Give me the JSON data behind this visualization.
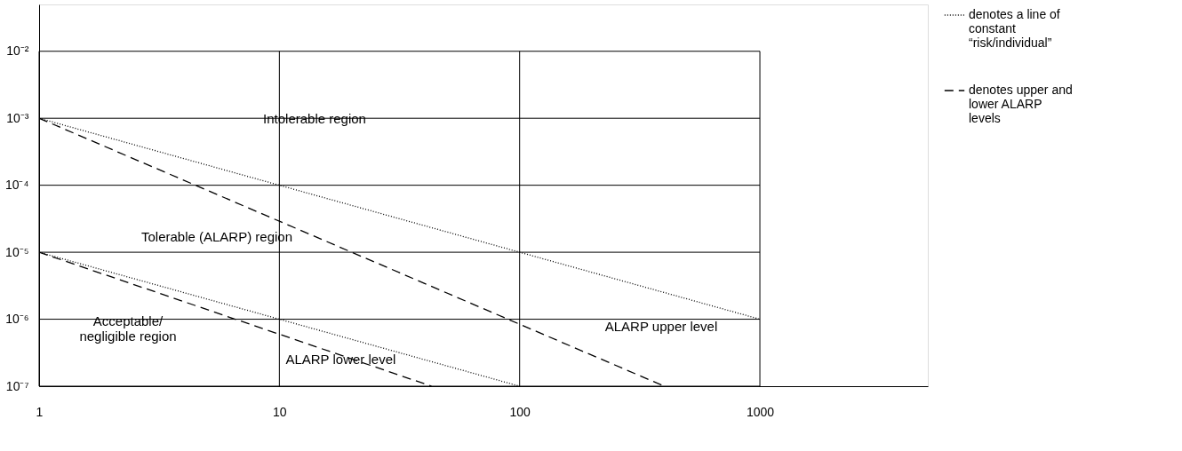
{
  "chart_data": {
    "type": "line",
    "log": "xy",
    "grid": true,
    "legend": "right",
    "xlim": [
      1,
      5000
    ],
    "ylim": [
      1e-07,
      0.05
    ],
    "xticks": [
      1,
      10,
      100,
      1000
    ],
    "yticks": [
      {
        "value": 1e-07,
        "label": "10⁻⁷"
      },
      {
        "value": 1e-06,
        "label": "10⁻⁶"
      },
      {
        "value": 1e-05,
        "label": "10⁻⁵"
      },
      {
        "value": 0.0001,
        "label": "10⁻⁴"
      },
      {
        "value": 0.001,
        "label": "10⁻³"
      },
      {
        "value": 0.01,
        "label": "10⁻²"
      }
    ],
    "series": [
      {
        "name": "denotes a line of constant “risk/individual”",
        "color": "#000000",
        "line_style": "dotted",
        "x": [
          1,
          1000
        ],
        "values": [
          0.001,
          1e-06
        ]
      },
      {
        "name": "denotes upper and lower ALARP levels",
        "color": "#000000",
        "line_style": "dashed",
        "x": [
          1,
          400
        ],
        "values": [
          0.001,
          1e-07
        ]
      },
      {
        "color": "#000000",
        "line_style": "dotted",
        "x": [
          1,
          100
        ],
        "values": [
          1e-05,
          1e-07
        ]
      },
      {
        "color": "#000000",
        "line_style": "dashed",
        "x": [
          1,
          43
        ],
        "values": [
          1e-05,
          1e-07
        ]
      }
    ],
    "annotations": [
      "Intolerable region",
      "Tolerable (ALARP) region",
      "Acceptable/\nnegligible region",
      {
        "text": "ALARP lower level",
        "x": 18,
        "y": 2.5e-07
      },
      "ALARP upper level"
    ]
  }
}
